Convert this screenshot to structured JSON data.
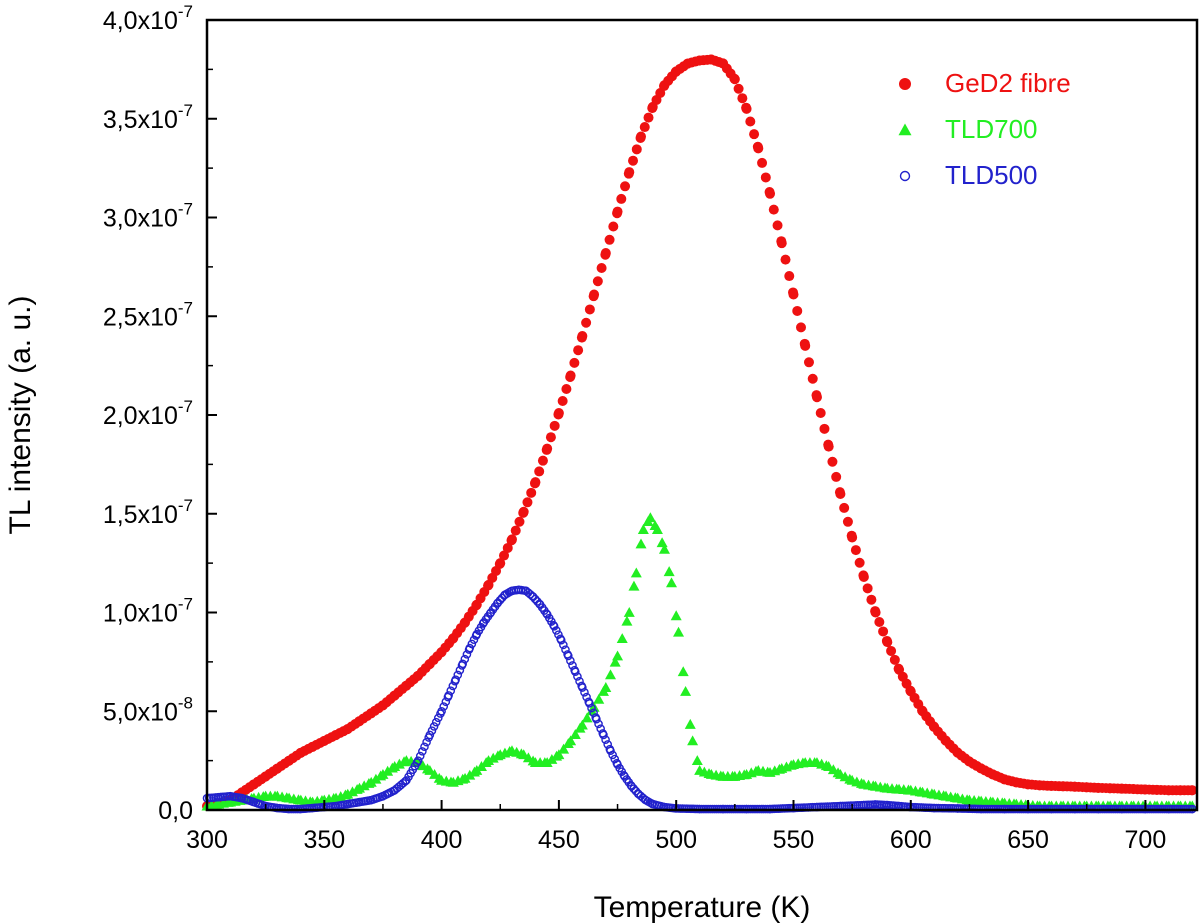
{
  "chart_data": {
    "type": "scatter",
    "xlabel": "Temperature (K)",
    "ylabel": "TL intensity (a. u.)",
    "xlim": [
      300,
      722
    ],
    "ylim": [
      0,
      4e-07
    ],
    "legend_position": "top-right",
    "grid": false,
    "x_ticks": [
      {
        "value": 300,
        "label": "300"
      },
      {
        "value": 350,
        "label": "350"
      },
      {
        "value": 400,
        "label": "400"
      },
      {
        "value": 450,
        "label": "450"
      },
      {
        "value": 500,
        "label": "500"
      },
      {
        "value": 550,
        "label": "550"
      },
      {
        "value": 600,
        "label": "600"
      },
      {
        "value": 650,
        "label": "650"
      },
      {
        "value": 700,
        "label": "700"
      }
    ],
    "y_ticks": [
      {
        "value": 0,
        "label": "0,0",
        "exp": ""
      },
      {
        "value": 5e-08,
        "label": "5,0x10",
        "exp": "-8"
      },
      {
        "value": 1e-07,
        "label": "1,0x10",
        "exp": "-7"
      },
      {
        "value": 1.5e-07,
        "label": "1,5x10",
        "exp": "-7"
      },
      {
        "value": 2e-07,
        "label": "2,0x10",
        "exp": "-7"
      },
      {
        "value": 2.5e-07,
        "label": "2,5x10",
        "exp": "-7"
      },
      {
        "value": 3e-07,
        "label": "3,0x10",
        "exp": "-7"
      },
      {
        "value": 3.5e-07,
        "label": "3,5x10",
        "exp": "-7"
      },
      {
        "value": 4e-07,
        "label": "4,0x10",
        "exp": "-7"
      }
    ],
    "series": [
      {
        "name": "GeD2 fibre",
        "color": "#ee1111",
        "marker": "filled-circle",
        "x": [
          300,
          305,
          310,
          315,
          320,
          325,
          330,
          335,
          340,
          345,
          350,
          355,
          360,
          365,
          370,
          375,
          380,
          385,
          390,
          395,
          400,
          405,
          410,
          415,
          420,
          425,
          430,
          435,
          440,
          445,
          450,
          455,
          460,
          465,
          470,
          475,
          480,
          485,
          490,
          495,
          500,
          505,
          510,
          515,
          520,
          525,
          530,
          535,
          540,
          545,
          550,
          555,
          560,
          565,
          570,
          575,
          580,
          585,
          590,
          595,
          600,
          605,
          610,
          615,
          620,
          625,
          630,
          635,
          640,
          645,
          650,
          655,
          660,
          665,
          670,
          675,
          680,
          685,
          690,
          695,
          700,
          705,
          710,
          715,
          720
        ],
        "y": [
          2e-09,
          3e-09,
          5e-09,
          9e-09,
          1.3e-08,
          1.7e-08,
          2.1e-08,
          2.5e-08,
          2.9e-08,
          3.2e-08,
          3.5e-08,
          3.8e-08,
          4.1e-08,
          4.5e-08,
          4.9e-08,
          5.3e-08,
          5.8e-08,
          6.3e-08,
          6.8e-08,
          7.4e-08,
          8e-08,
          8.7e-08,
          9.5e-08,
          1.04e-07,
          1.14e-07,
          1.25e-07,
          1.37e-07,
          1.51e-07,
          1.66e-07,
          1.83e-07,
          2.01e-07,
          2.2e-07,
          2.4e-07,
          2.61e-07,
          2.82e-07,
          3.03e-07,
          3.23e-07,
          3.41e-07,
          3.56e-07,
          3.67e-07,
          3.74e-07,
          3.78e-07,
          3.795e-07,
          3.8e-07,
          3.78e-07,
          3.7e-07,
          3.55e-07,
          3.35e-07,
          3.12e-07,
          2.87e-07,
          2.61e-07,
          2.35e-07,
          2.09e-07,
          1.84e-07,
          1.6e-07,
          1.38e-07,
          1.18e-07,
          1e-07,
          8.5e-08,
          7.1e-08,
          6e-08,
          5e-08,
          4.2e-08,
          3.5e-08,
          2.9e-08,
          2.45e-08,
          2.1e-08,
          1.8e-08,
          1.55e-08,
          1.4e-08,
          1.3e-08,
          1.25e-08,
          1.22e-08,
          1.2e-08,
          1.18e-08,
          1.15e-08,
          1.12e-08,
          1.1e-08,
          1.08e-08,
          1.06e-08,
          1.04e-08,
          1.02e-08,
          1e-08,
          1e-08,
          1e-08
        ]
      },
      {
        "name": "TLD700",
        "color": "#22ee22",
        "marker": "filled-triangle",
        "x": [
          300,
          305,
          310,
          315,
          320,
          325,
          330,
          335,
          340,
          345,
          350,
          355,
          360,
          365,
          370,
          375,
          380,
          385,
          390,
          395,
          400,
          405,
          410,
          415,
          420,
          425,
          430,
          435,
          440,
          445,
          450,
          455,
          460,
          465,
          470,
          475,
          480,
          483,
          486,
          489,
          492,
          495,
          498,
          501,
          504,
          507,
          510,
          515,
          520,
          525,
          530,
          535,
          540,
          545,
          550,
          555,
          560,
          565,
          570,
          575,
          580,
          585,
          590,
          595,
          600,
          605,
          610,
          615,
          620,
          625,
          630,
          635,
          640,
          645,
          650,
          655,
          660,
          665,
          670,
          675,
          680,
          685,
          690,
          695,
          700,
          705,
          710,
          715,
          720
        ],
        "y": [
          2e-09,
          3e-09,
          4e-09,
          5e-09,
          6e-09,
          7e-09,
          7e-09,
          6e-09,
          5e-09,
          4e-09,
          5e-09,
          6e-09,
          8e-09,
          1.1e-08,
          1.4e-08,
          1.8e-08,
          2.2e-08,
          2.5e-08,
          2.4e-08,
          2e-08,
          1.5e-08,
          1.4e-08,
          1.6e-08,
          2e-08,
          2.5e-08,
          2.8e-08,
          3e-08,
          2.8e-08,
          2.4e-08,
          2.4e-08,
          2.8e-08,
          3.5e-08,
          4.3e-08,
          5.2e-08,
          6.2e-08,
          7.8e-08,
          1e-07,
          1.2e-07,
          1.42e-07,
          1.48e-07,
          1.42e-07,
          1.32e-07,
          1.15e-07,
          9e-08,
          6e-08,
          3.5e-08,
          2e-08,
          1.8e-08,
          1.7e-08,
          1.7e-08,
          1.8e-08,
          2e-08,
          1.9e-08,
          2.1e-08,
          2.3e-08,
          2.4e-08,
          2.4e-08,
          2.2e-08,
          1.8e-08,
          1.5e-08,
          1.3e-08,
          1.2e-08,
          1.1e-08,
          1.05e-08,
          1e-08,
          9e-09,
          8e-09,
          7e-09,
          6e-09,
          5e-09,
          4.5e-09,
          4e-09,
          3.5e-09,
          3e-09,
          2.5e-09,
          2e-09,
          2e-09,
          2e-09,
          2e-09,
          2e-09,
          2e-09,
          2e-09,
          2e-09,
          2e-09,
          2e-09,
          2e-09,
          2e-09,
          2e-09,
          2e-09
        ]
      },
      {
        "name": "TLD500",
        "color": "#2222cc",
        "marker": "open-circle",
        "x": [
          300,
          305,
          310,
          315,
          320,
          325,
          330,
          335,
          340,
          345,
          350,
          355,
          360,
          365,
          370,
          375,
          380,
          385,
          390,
          395,
          400,
          403,
          406,
          409,
          412,
          415,
          418,
          421,
          424,
          427,
          430,
          433,
          436,
          439,
          442,
          445,
          448,
          451,
          454,
          457,
          460,
          463,
          466,
          469,
          472,
          475,
          478,
          481,
          484,
          487,
          490,
          495,
          500,
          510,
          520,
          530,
          540,
          550,
          560,
          570,
          580,
          585,
          590,
          595,
          600,
          610,
          620,
          630,
          640,
          650,
          660,
          670,
          680,
          690,
          700,
          710,
          720
        ],
        "y": [
          6e-09,
          6.5e-09,
          7e-09,
          6e-09,
          4e-09,
          2e-09,
          1e-09,
          5e-10,
          5e-10,
          1e-09,
          1.5e-09,
          2e-09,
          3e-09,
          4e-09,
          5e-09,
          7e-09,
          1e-08,
          1.5e-08,
          2.5e-08,
          3.8e-08,
          5e-08,
          5.8e-08,
          6.6e-08,
          7.4e-08,
          8.2e-08,
          8.9e-08,
          9.5e-08,
          1e-07,
          1.05e-07,
          1.09e-07,
          1.11e-07,
          1.115e-07,
          1.11e-07,
          1.08e-07,
          1.04e-07,
          9.9e-08,
          9.3e-08,
          8.6e-08,
          7.8e-08,
          7e-08,
          6.2e-08,
          5.4e-08,
          4.6e-08,
          3.8e-08,
          3e-08,
          2.3e-08,
          1.7e-08,
          1.2e-08,
          8e-09,
          5e-09,
          3e-09,
          1.5e-09,
          8e-10,
          5e-10,
          5e-10,
          5e-10,
          5e-10,
          1e-09,
          1.5e-09,
          2e-09,
          2.5e-09,
          2.8e-09,
          2.5e-09,
          2e-09,
          1.5e-09,
          1e-09,
          8e-10,
          5e-10,
          5e-10,
          5e-10,
          5e-10,
          5e-10,
          5e-10,
          5e-10,
          5e-10,
          5e-10,
          5e-10
        ]
      }
    ]
  }
}
